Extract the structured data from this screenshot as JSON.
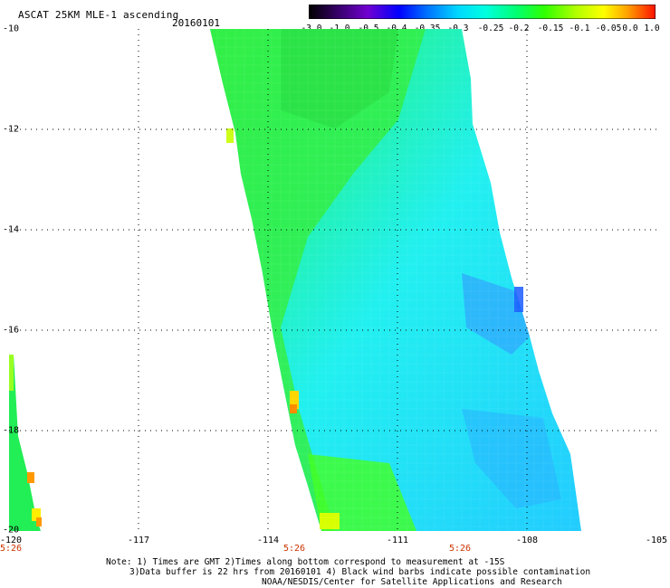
{
  "header": {
    "title": "ASCAT 25KM MLE-1 ascending",
    "date": "20160101"
  },
  "colorbar": {
    "ticks": [
      "-3.0",
      "-1.0",
      "-0.5",
      "-0.4",
      "-0.35",
      "-0.3",
      "-0.25",
      "-0.2",
      "-0.15",
      "-0.1",
      "-0.05",
      "0.0",
      "1.0"
    ],
    "colors": [
      "#000000",
      "#7f00d8",
      "#0000ff",
      "#0090ff",
      "#00e0ff",
      "#00ffd0",
      "#00ff60",
      "#40ff00",
      "#b0ff00",
      "#ffff00",
      "#ff9000",
      "#ff2000"
    ]
  },
  "map": {
    "lat_labels": [
      "-10",
      "-12",
      "-14",
      "-16",
      "-18",
      "-20"
    ],
    "lon_labels": [
      "-120",
      "-117",
      "-114",
      "-111",
      "-108",
      "-105"
    ],
    "time_labels": [
      "5:26",
      "5:26",
      "5:26"
    ],
    "lat_range": [
      -20,
      -10
    ],
    "lon_range": [
      -120,
      -105
    ]
  },
  "notes": {
    "line1": "Note: 1) Times are GMT 2)Times along bottom correspond to measurement at -15S",
    "line2": "3)Data buffer is 22 hrs from 20160101 4) Black wind barbs indicate possible contamination",
    "line3": "NOAA/NESDIS/Center for Satellite Applications and Research"
  }
}
